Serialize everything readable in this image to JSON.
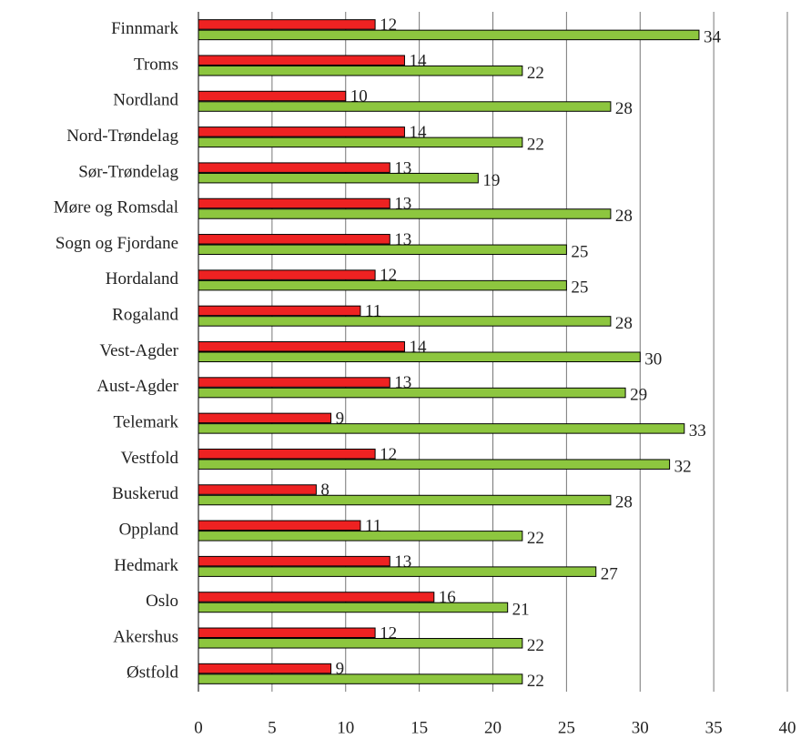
{
  "chart_data": {
    "type": "bar",
    "orientation": "horizontal",
    "categories": [
      "Finnmark",
      "Troms",
      "Nordland",
      "Nord-Trøndelag",
      "Sør-Trøndelag",
      "Møre og Romsdal",
      "Sogn og Fjordane",
      "Hordaland",
      "Rogaland",
      "Vest-Agder",
      "Aust-Agder",
      "Telemark",
      "Vestfold",
      "Buskerud",
      "Oppland",
      "Hedmark",
      "Oslo",
      "Akershus",
      "Østfold"
    ],
    "series": [
      {
        "color": "#ee2222",
        "values": [
          12,
          14,
          10,
          14,
          13,
          13,
          13,
          12,
          11,
          14,
          13,
          9,
          12,
          8,
          11,
          13,
          16,
          12,
          9
        ]
      },
      {
        "color": "#8dc63f",
        "values": [
          34,
          22,
          28,
          22,
          19,
          28,
          25,
          25,
          28,
          30,
          29,
          33,
          32,
          28,
          22,
          27,
          21,
          22,
          22
        ]
      }
    ],
    "xlim": [
      0,
      40
    ],
    "xticks": [
      0,
      5,
      10,
      15,
      20,
      25,
      30,
      35,
      40
    ],
    "grid": true
  }
}
